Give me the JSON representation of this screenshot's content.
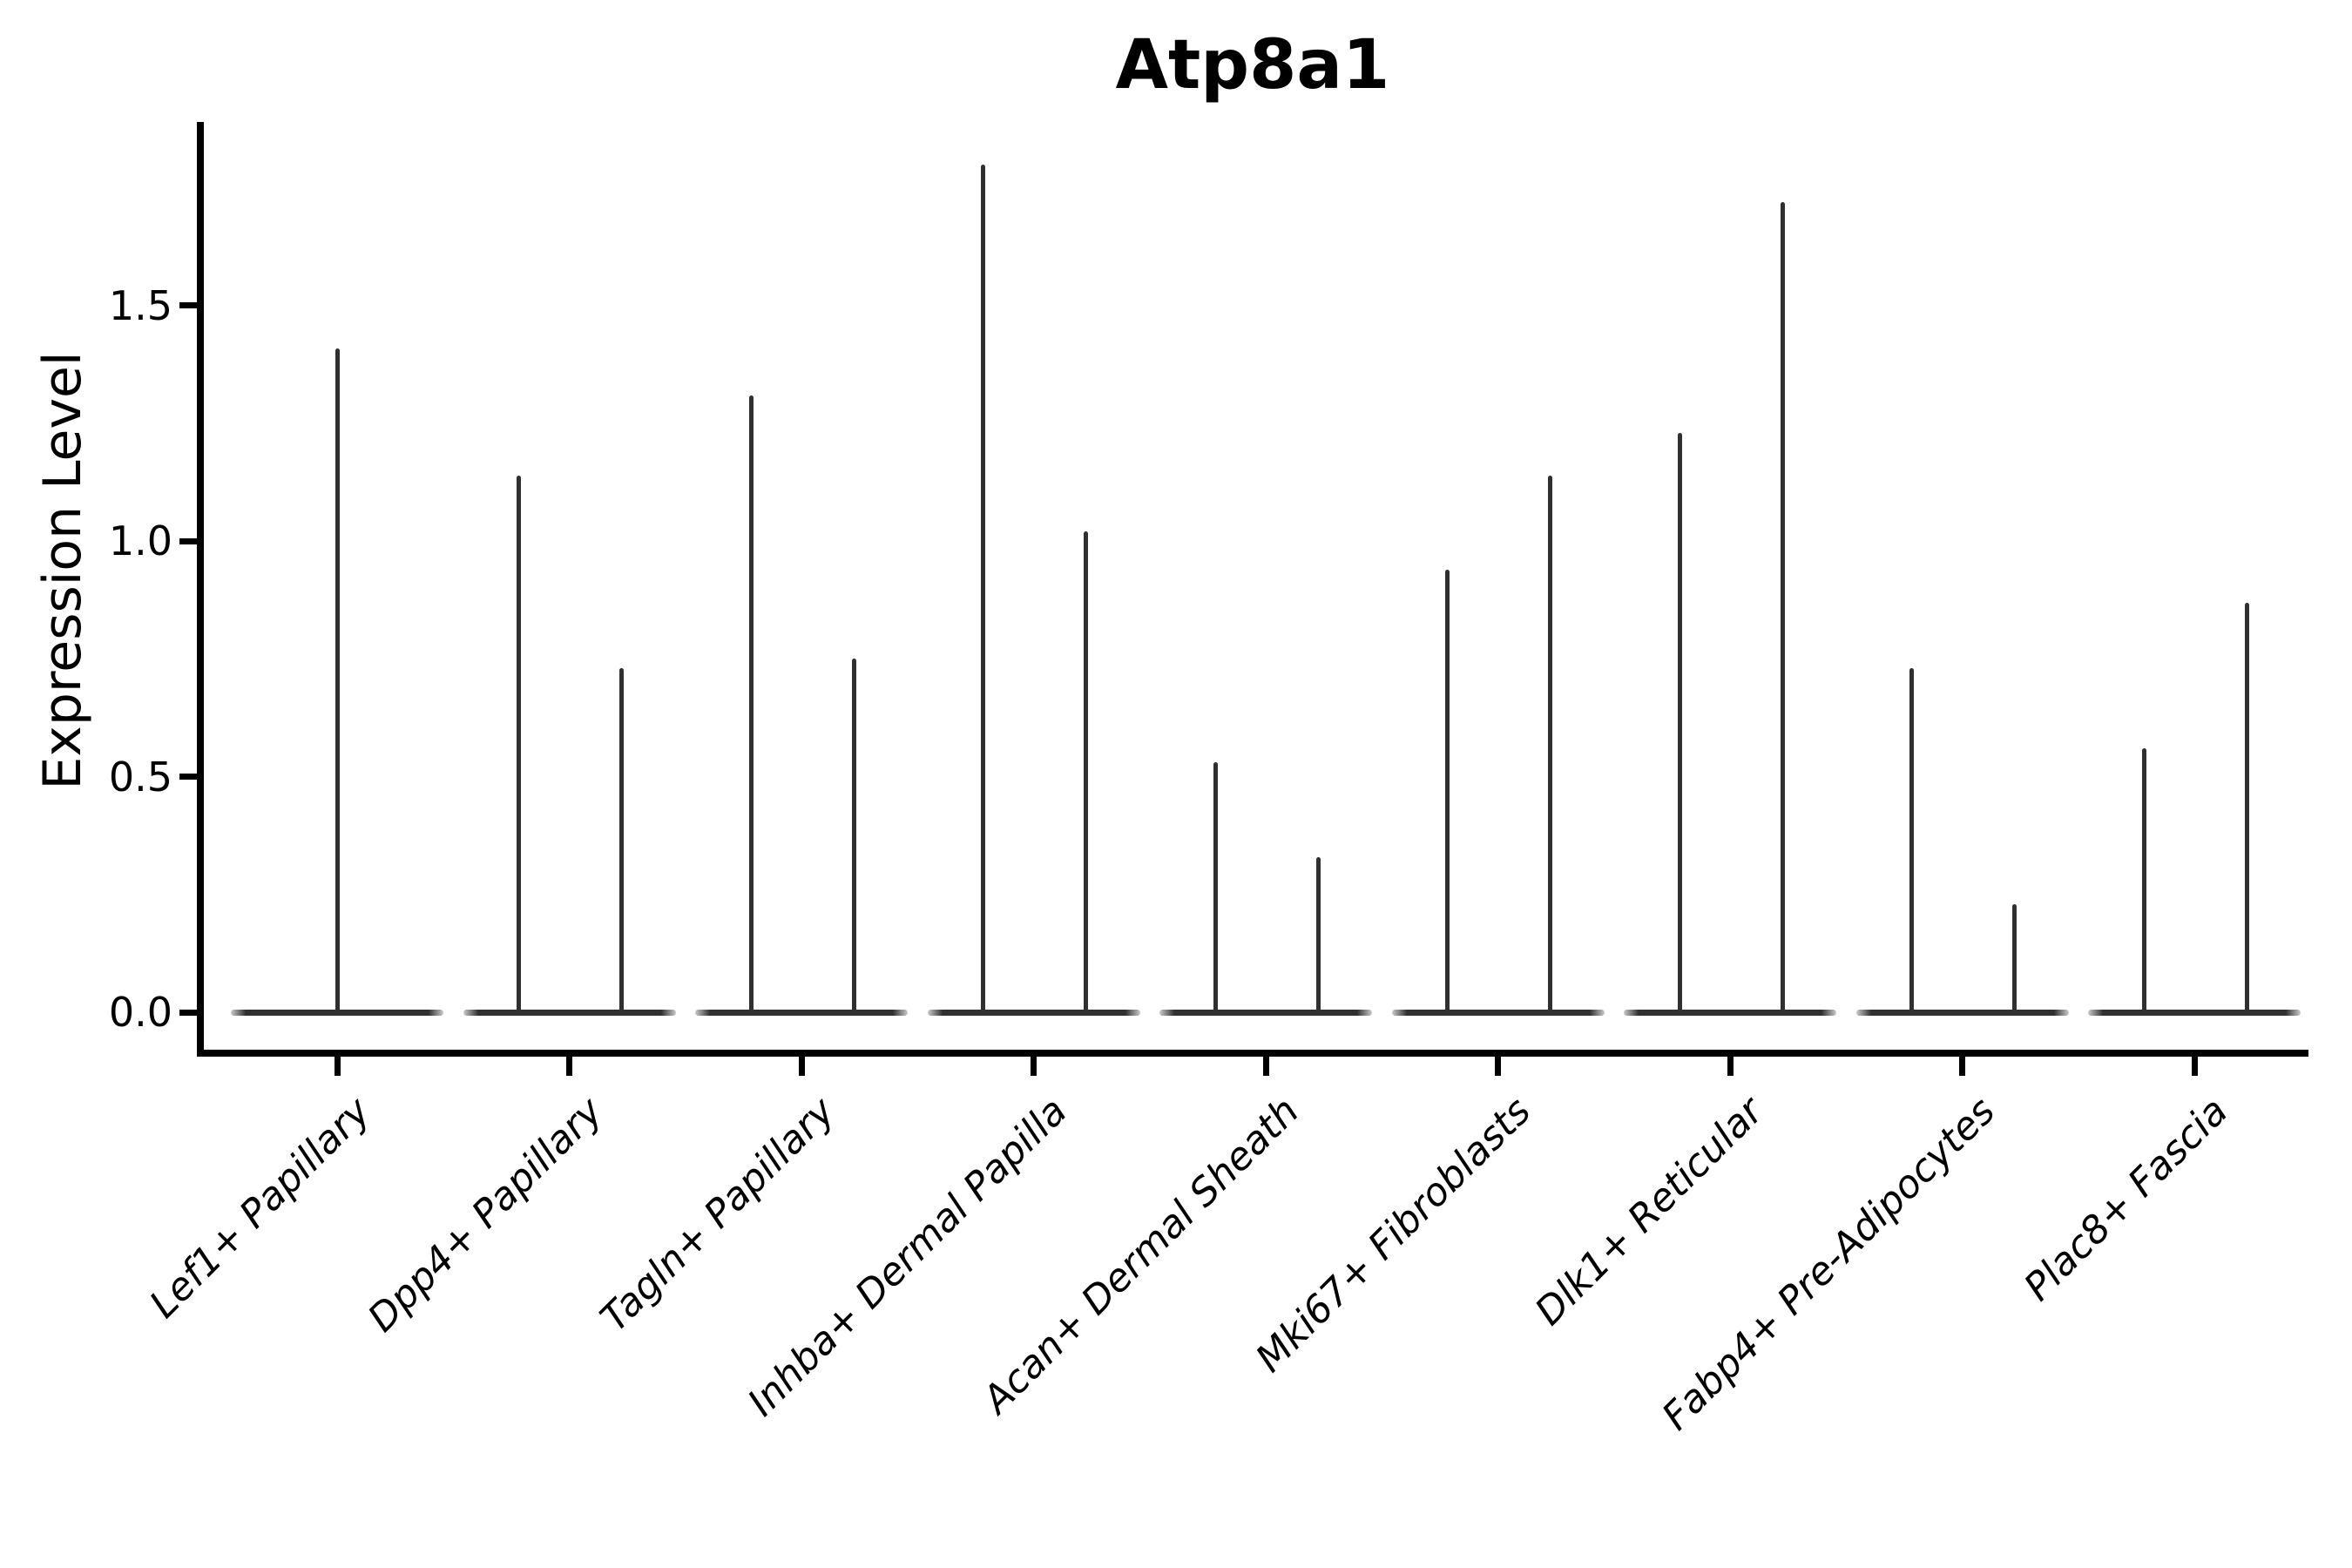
{
  "figure": {
    "title": "Atp8a1"
  },
  "chart_data": {
    "type": "violin",
    "title": "Atp8a1",
    "xlabel": "",
    "ylabel": "Expression Level",
    "yticks": [
      0.0,
      0.5,
      1.0,
      1.5
    ],
    "ytick_labels": [
      "0.0",
      "0.5",
      "1.0",
      "1.5"
    ],
    "ylim": [
      -0.09,
      1.89
    ],
    "grid": false,
    "legend": "none",
    "categories": [
      "Lef1+ Papillary",
      "Dpp4+ Papillary",
      "Tagln+ Papillary",
      "Inhba+ Dermal Papilla",
      "Acan+ Dermal Sheath",
      "Mki67+ Fibroblasts",
      "Dlk1+ Reticular",
      "Fabp4+ Pre-Adipocytes",
      "Plac8+ Fascia"
    ],
    "violin_shape_note": "Each violin collapses to a flat density base at expression 0 with thin vertical spikes reaching the maximum expressed value; every category except the first shows two side-by-side spikes.",
    "spike_maxima": [
      [
        1.41
      ],
      [
        1.14,
        0.73
      ],
      [
        1.31,
        0.75
      ],
      [
        1.8,
        1.02
      ],
      [
        0.53,
        0.33
      ],
      [
        0.94,
        1.14
      ],
      [
        1.23,
        1.72
      ],
      [
        0.73,
        0.23
      ],
      [
        0.56,
        0.87
      ]
    ],
    "colors": {
      "violin": "#303030",
      "axis": "#000000",
      "text": "#000000",
      "background": "#ffffff"
    }
  }
}
